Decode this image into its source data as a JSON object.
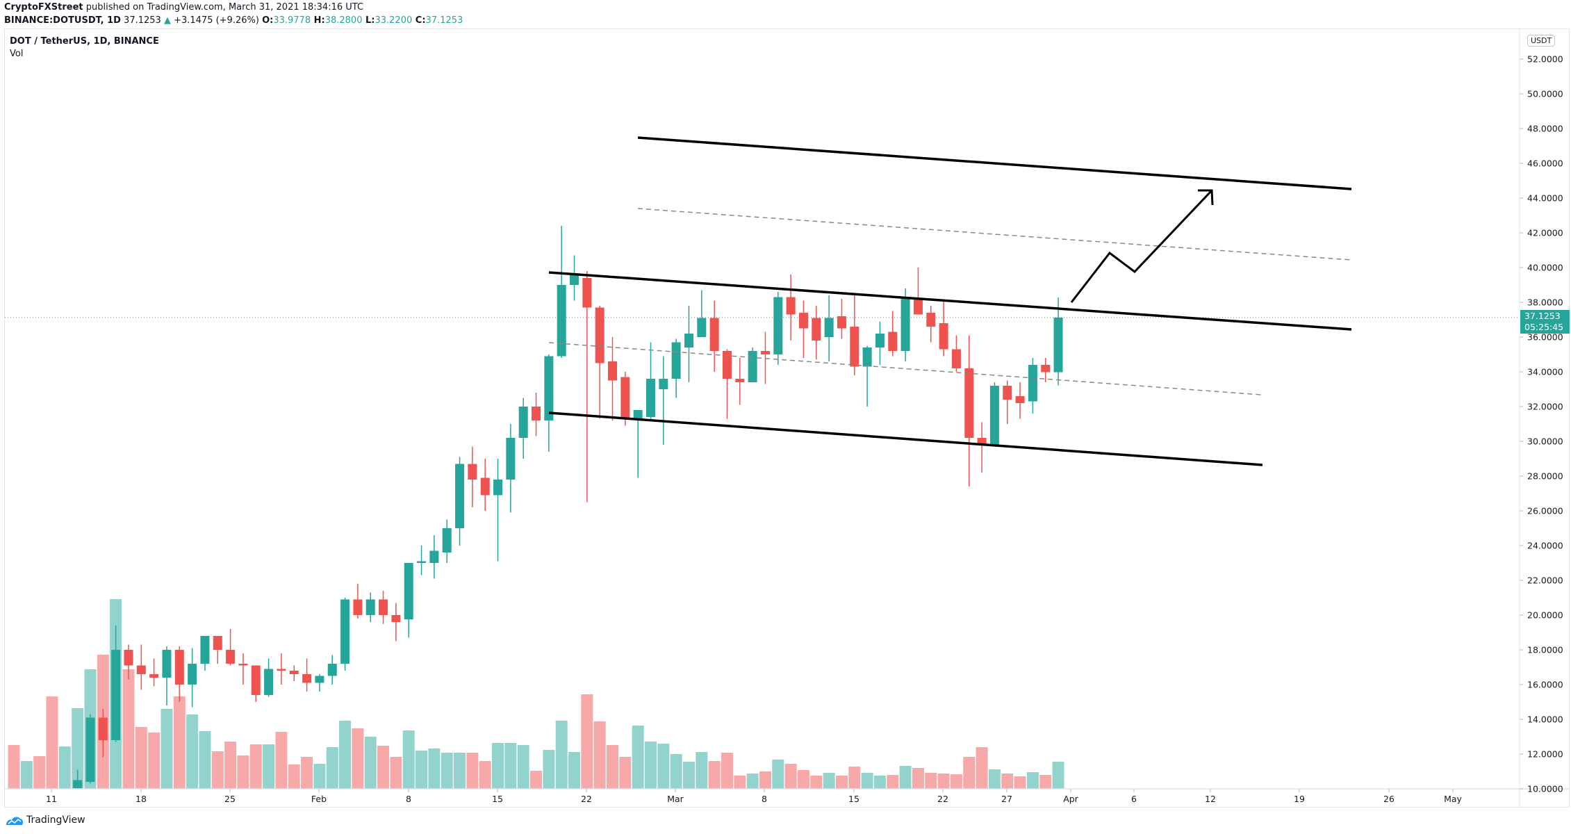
{
  "header": {
    "publisher": "CryptoFXStreet",
    "published_text": " published on TradingView.com, March 31, 2021 18:34:16 UTC",
    "symbol_line": "BINANCE:DOTUSDT, 1D",
    "last_price": " 37.1253",
    "change_arrow": "▲",
    "change": " +3.1475 (+9.26%) ",
    "o_label": "O:",
    "o_value": "33.9778",
    "h_label": " H:",
    "h_value": "38.2800",
    "l_label": " L:",
    "l_value": "33.2200",
    "c_label": " C:",
    "c_value": "37.1253"
  },
  "legend": {
    "title": "DOT / TetherUS, 1D, BINANCE",
    "indicator": "Vol"
  },
  "price_axis": {
    "currency_button": "USDT",
    "current_price": "37.1253",
    "countdown": "05:25:45"
  },
  "footer": {
    "brand": "TradingView"
  },
  "colors": {
    "up": "#26a69a",
    "down": "#ef5350",
    "vol_up": "#92d3cd",
    "vol_down": "#f6a9a8",
    "trendline": "#000000",
    "dashed": "#888888",
    "grid_border": "#e0e3eb"
  },
  "chart_data": {
    "type": "candlestick",
    "title": "DOT / TetherUS, 1D, BINANCE",
    "ylabel": "USDT",
    "ylim": [
      10,
      53
    ],
    "y_ticks": [
      "52.0000",
      "50.0000",
      "48.0000",
      "46.0000",
      "44.0000",
      "42.0000",
      "40.0000",
      "38.0000",
      "36.0000",
      "34.0000",
      "32.0000",
      "30.0000",
      "28.0000",
      "26.0000",
      "24.0000",
      "22.0000",
      "20.0000",
      "18.0000",
      "16.0000",
      "14.0000",
      "12.0000",
      "10.0000"
    ],
    "x_ticks": [
      "11",
      "18",
      "25",
      "Feb",
      "8",
      "15",
      "22",
      "Mar",
      "8",
      "15",
      "22",
      "27",
      "Apr",
      "6",
      "12",
      "19",
      "26",
      "May"
    ],
    "grid": false,
    "first_date": "2021-01-08",
    "candles": [
      {
        "d": "Jan 8",
        "o": 9.0,
        "h": 9.5,
        "l": 8.5,
        "c": 8.9,
        "v": 63
      },
      {
        "d": "Jan 9",
        "o": 8.9,
        "h": 9.4,
        "l": 8.6,
        "c": 9.2,
        "v": 40
      },
      {
        "d": "Jan 10",
        "o": 9.2,
        "h": 9.5,
        "l": 8.7,
        "c": 9.0,
        "v": 47
      },
      {
        "d": "Jan 11",
        "o": 9.0,
        "h": 9.2,
        "l": 7.8,
        "c": 8.6,
        "v": 133
      },
      {
        "d": "Jan 12",
        "o": 8.6,
        "h": 9.4,
        "l": 8.3,
        "c": 9.1,
        "v": 61
      },
      {
        "d": "Jan 13",
        "o": 9.1,
        "h": 11.1,
        "l": 9.0,
        "c": 10.5,
        "v": 116
      },
      {
        "d": "Jan 14",
        "o": 10.4,
        "h": 14.3,
        "l": 10.3,
        "c": 14.1,
        "v": 172
      },
      {
        "d": "Jan 15",
        "o": 14.1,
        "h": 14.6,
        "l": 11.8,
        "c": 12.8,
        "v": 193
      },
      {
        "d": "Jan 16",
        "o": 12.8,
        "h": 19.4,
        "l": 12.7,
        "c": 18.0,
        "v": 273
      },
      {
        "d": "Jan 17",
        "o": 18.0,
        "h": 18.3,
        "l": 16.3,
        "c": 17.1,
        "v": 172
      },
      {
        "d": "Jan 18",
        "o": 17.1,
        "h": 18.3,
        "l": 15.7,
        "c": 16.6,
        "v": 89
      },
      {
        "d": "Jan 19",
        "o": 16.6,
        "h": 17.5,
        "l": 15.9,
        "c": 16.4,
        "v": 81
      },
      {
        "d": "Jan 20",
        "o": 16.4,
        "h": 18.2,
        "l": 14.8,
        "c": 18.0,
        "v": 115
      },
      {
        "d": "Jan 21",
        "o": 18.0,
        "h": 18.2,
        "l": 15.0,
        "c": 16.0,
        "v": 133
      },
      {
        "d": "Jan 22",
        "o": 16.0,
        "h": 18.1,
        "l": 14.7,
        "c": 17.2,
        "v": 107
      },
      {
        "d": "Jan 23",
        "o": 17.2,
        "h": 18.8,
        "l": 16.8,
        "c": 18.8,
        "v": 83
      },
      {
        "d": "Jan 24",
        "o": 18.8,
        "h": 18.8,
        "l": 17.2,
        "c": 18.0,
        "v": 54
      },
      {
        "d": "Jan 25",
        "o": 18.0,
        "h": 19.2,
        "l": 17.1,
        "c": 17.2,
        "v": 68
      },
      {
        "d": "Jan 26",
        "o": 17.2,
        "h": 17.8,
        "l": 16.0,
        "c": 17.1,
        "v": 48
      },
      {
        "d": "Jan 27",
        "o": 17.1,
        "h": 17.1,
        "l": 15.0,
        "c": 15.4,
        "v": 64
      },
      {
        "d": "Jan 28",
        "o": 15.4,
        "h": 17.5,
        "l": 15.3,
        "c": 16.9,
        "v": 64
      },
      {
        "d": "Jan 29",
        "o": 16.9,
        "h": 17.8,
        "l": 16.0,
        "c": 16.8,
        "v": 82
      },
      {
        "d": "Jan 30",
        "o": 16.8,
        "h": 17.1,
        "l": 16.2,
        "c": 16.6,
        "v": 35
      },
      {
        "d": "Jan 31",
        "o": 16.6,
        "h": 17.5,
        "l": 15.6,
        "c": 16.1,
        "v": 46
      },
      {
        "d": "Feb 1",
        "o": 16.1,
        "h": 16.6,
        "l": 15.6,
        "c": 16.5,
        "v": 36
      },
      {
        "d": "Feb 2",
        "o": 16.5,
        "h": 17.7,
        "l": 16.0,
        "c": 17.2,
        "v": 60
      },
      {
        "d": "Feb 3",
        "o": 17.2,
        "h": 21.0,
        "l": 16.8,
        "c": 20.9,
        "v": 98
      },
      {
        "d": "Feb 4",
        "o": 20.9,
        "h": 21.8,
        "l": 19.8,
        "c": 20.0,
        "v": 87
      },
      {
        "d": "Feb 5",
        "o": 20.0,
        "h": 21.3,
        "l": 19.6,
        "c": 20.9,
        "v": 75
      },
      {
        "d": "Feb 6",
        "o": 20.9,
        "h": 21.4,
        "l": 19.5,
        "c": 20.0,
        "v": 62
      },
      {
        "d": "Feb 7",
        "o": 20.0,
        "h": 20.7,
        "l": 18.5,
        "c": 19.6,
        "v": 46
      },
      {
        "d": "Feb 8",
        "o": 19.75,
        "h": 23.0,
        "l": 18.7,
        "c": 23.0,
        "v": 84
      },
      {
        "d": "Feb 9",
        "o": 23.0,
        "h": 24.0,
        "l": 22.3,
        "c": 23.1,
        "v": 55
      },
      {
        "d": "Feb 10",
        "o": 23.0,
        "h": 24.6,
        "l": 22.1,
        "c": 23.7,
        "v": 58
      },
      {
        "d": "Feb 11",
        "o": 23.6,
        "h": 25.5,
        "l": 23.0,
        "c": 25.0,
        "v": 52
      },
      {
        "d": "Feb 12",
        "o": 25.0,
        "h": 29.1,
        "l": 24.0,
        "c": 28.7,
        "v": 52
      },
      {
        "d": "Feb 13",
        "o": 28.7,
        "h": 29.7,
        "l": 26.2,
        "c": 27.8,
        "v": 52
      },
      {
        "d": "Feb 14",
        "o": 27.9,
        "h": 29.0,
        "l": 26.0,
        "c": 26.9,
        "v": 40
      },
      {
        "d": "Feb 15",
        "o": 26.9,
        "h": 29.0,
        "l": 23.1,
        "c": 27.8,
        "v": 66
      },
      {
        "d": "Feb 16",
        "o": 27.8,
        "h": 31.0,
        "l": 25.9,
        "c": 30.2,
        "v": 66
      },
      {
        "d": "Feb 17",
        "o": 30.2,
        "h": 32.5,
        "l": 29.0,
        "c": 32.0,
        "v": 63
      },
      {
        "d": "Feb 18",
        "o": 32.0,
        "h": 32.8,
        "l": 30.3,
        "c": 31.2,
        "v": 26
      },
      {
        "d": "Feb 19",
        "o": 31.2,
        "h": 35.0,
        "l": 29.4,
        "c": 34.9,
        "v": 56
      },
      {
        "d": "Feb 20",
        "o": 34.9,
        "h": 42.4,
        "l": 34.8,
        "c": 39.0,
        "v": 98
      },
      {
        "d": "Feb 21",
        "o": 39.0,
        "h": 40.7,
        "l": 38.1,
        "c": 39.6,
        "v": 53
      },
      {
        "d": "Feb 22",
        "o": 39.4,
        "h": 39.8,
        "l": 26.5,
        "c": 37.7,
        "v": 136
      },
      {
        "d": "Feb 23",
        "o": 37.7,
        "h": 37.8,
        "l": 31.3,
        "c": 34.5,
        "v": 97
      },
      {
        "d": "Feb 24",
        "o": 34.6,
        "h": 36.0,
        "l": 31.2,
        "c": 33.5,
        "v": 63
      },
      {
        "d": "Feb 25",
        "o": 33.7,
        "h": 34.0,
        "l": 30.9,
        "c": 31.3,
        "v": 46
      },
      {
        "d": "Feb 26",
        "o": 31.3,
        "h": 31.8,
        "l": 27.9,
        "c": 31.8,
        "v": 91
      },
      {
        "d": "Feb 27",
        "o": 31.4,
        "h": 35.7,
        "l": 31.2,
        "c": 33.6,
        "v": 68
      },
      {
        "d": "Feb 28",
        "o": 33.0,
        "h": 34.9,
        "l": 29.8,
        "c": 33.6,
        "v": 65
      },
      {
        "d": "Mar 1",
        "o": 33.6,
        "h": 35.9,
        "l": 32.5,
        "c": 35.7,
        "v": 50
      },
      {
        "d": "Mar 2",
        "o": 35.4,
        "h": 37.8,
        "l": 33.4,
        "c": 36.2,
        "v": 39
      },
      {
        "d": "Mar 3",
        "o": 36.0,
        "h": 38.7,
        "l": 36.0,
        "c": 37.1,
        "v": 53
      },
      {
        "d": "Mar 4",
        "o": 37.1,
        "h": 38.1,
        "l": 34.0,
        "c": 35.2,
        "v": 40
      },
      {
        "d": "Mar 5",
        "o": 35.2,
        "h": 35.3,
        "l": 31.3,
        "c": 33.6,
        "v": 52
      },
      {
        "d": "Mar 6",
        "o": 33.6,
        "h": 34.8,
        "l": 32.1,
        "c": 33.4,
        "v": 19
      },
      {
        "d": "Mar 7",
        "o": 33.4,
        "h": 35.4,
        "l": 33.4,
        "c": 35.2,
        "v": 22
      },
      {
        "d": "Mar 8",
        "o": 35.2,
        "h": 36.3,
        "l": 33.3,
        "c": 35.0,
        "v": 25
      },
      {
        "d": "Mar 9",
        "o": 35.0,
        "h": 38.6,
        "l": 34.4,
        "c": 38.3,
        "v": 42
      },
      {
        "d": "Mar 10",
        "o": 38.3,
        "h": 39.6,
        "l": 35.8,
        "c": 37.3,
        "v": 36
      },
      {
        "d": "Mar 11",
        "o": 37.4,
        "h": 38.1,
        "l": 34.8,
        "c": 36.5,
        "v": 27
      },
      {
        "d": "Mar 12",
        "o": 37.1,
        "h": 37.8,
        "l": 34.7,
        "c": 35.8,
        "v": 19
      },
      {
        "d": "Mar 13",
        "o": 36.0,
        "h": 38.4,
        "l": 34.6,
        "c": 37.1,
        "v": 23
      },
      {
        "d": "Mar 14",
        "o": 37.2,
        "h": 38.2,
        "l": 35.9,
        "c": 36.5,
        "v": 19
      },
      {
        "d": "Mar 15",
        "o": 36.6,
        "h": 38.5,
        "l": 33.8,
        "c": 34.3,
        "v": 32
      },
      {
        "d": "Mar 16",
        "o": 34.3,
        "h": 35.5,
        "l": 32.0,
        "c": 35.4,
        "v": 23
      },
      {
        "d": "Mar 17",
        "o": 35.4,
        "h": 36.9,
        "l": 34.4,
        "c": 36.2,
        "v": 19
      },
      {
        "d": "Mar 18",
        "o": 36.3,
        "h": 37.5,
        "l": 34.9,
        "c": 35.2,
        "v": 20
      },
      {
        "d": "Mar 19",
        "o": 35.2,
        "h": 38.8,
        "l": 34.6,
        "c": 38.2,
        "v": 33
      },
      {
        "d": "Mar 20",
        "o": 38.2,
        "h": 40.0,
        "l": 37.4,
        "c": 37.3,
        "v": 30
      },
      {
        "d": "Mar 21",
        "o": 37.4,
        "h": 37.8,
        "l": 35.7,
        "c": 36.6,
        "v": 23
      },
      {
        "d": "Mar 22",
        "o": 36.8,
        "h": 38.1,
        "l": 34.9,
        "c": 35.3,
        "v": 22
      },
      {
        "d": "Mar 23",
        "o": 35.3,
        "h": 36.1,
        "l": 34.0,
        "c": 34.2,
        "v": 21
      },
      {
        "d": "Mar 24",
        "o": 34.2,
        "h": 36.1,
        "l": 27.4,
        "c": 30.2,
        "v": 46
      },
      {
        "d": "Mar 25",
        "o": 30.2,
        "h": 31.1,
        "l": 28.2,
        "c": 29.8,
        "v": 60
      },
      {
        "d": "Mar 26",
        "o": 29.8,
        "h": 33.4,
        "l": 29.8,
        "c": 33.2,
        "v": 28
      },
      {
        "d": "Mar 27",
        "o": 33.2,
        "h": 33.5,
        "l": 31.0,
        "c": 32.4,
        "v": 22
      },
      {
        "d": "Mar 28",
        "o": 32.6,
        "h": 33.4,
        "l": 31.3,
        "c": 32.2,
        "v": 18
      },
      {
        "d": "Mar 29",
        "o": 32.3,
        "h": 34.8,
        "l": 31.6,
        "c": 34.4,
        "v": 24
      },
      {
        "d": "Mar 30",
        "o": 34.4,
        "h": 34.8,
        "l": 33.4,
        "c": 33.98,
        "v": 20
      },
      {
        "d": "Mar 31",
        "o": 33.9778,
        "h": 38.28,
        "l": 33.22,
        "c": 37.1253,
        "v": 39
      }
    ],
    "annotations": [
      {
        "type": "trendline",
        "style": "solid",
        "from": [
          918,
          198
        ],
        "to": [
          1945,
          272
        ]
      },
      {
        "type": "trendline",
        "style": "dashed",
        "from": [
          918,
          300
        ],
        "to": [
          1945,
          374
        ]
      },
      {
        "type": "trendline",
        "style": "solid",
        "from": [
          790,
          392
        ],
        "to": [
          1945,
          474
        ]
      },
      {
        "type": "trendline",
        "style": "dashed",
        "from": [
          790,
          493
        ],
        "to": [
          1815,
          568
        ]
      },
      {
        "type": "trendline",
        "style": "solid",
        "from": [
          790,
          594
        ],
        "to": [
          1817,
          669
        ]
      },
      {
        "type": "arrow",
        "points": [
          [
            1542,
            435
          ],
          [
            1597,
            364
          ],
          [
            1633,
            391
          ],
          [
            1744,
            274
          ]
        ]
      }
    ]
  }
}
